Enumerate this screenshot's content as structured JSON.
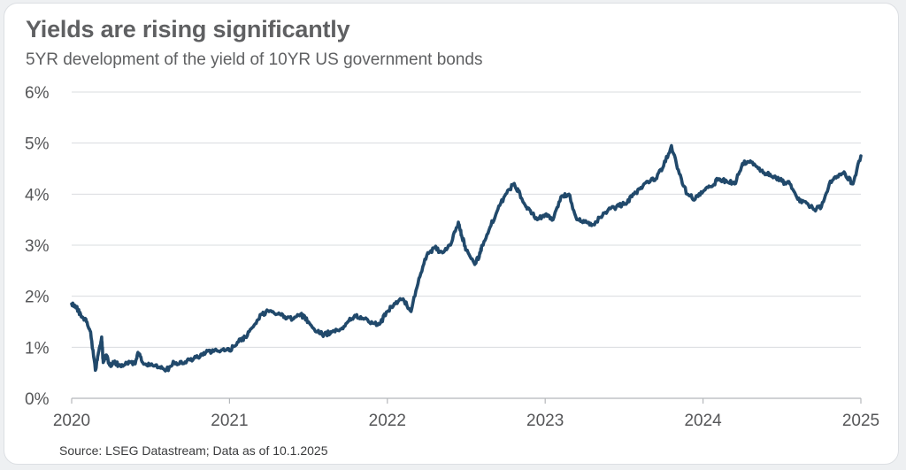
{
  "title": "Yields are rising significantly",
  "subtitle": "5YR development of the yield of 10YR US government bonds",
  "source": "Source: LSEG Datastream; Data as of 10.1.2025",
  "colors": {
    "line": "#21496b",
    "grid": "#d9dcdf",
    "text": "#5f6062"
  },
  "chart_data": {
    "type": "line",
    "title": "Yields are rising significantly",
    "subtitle": "5YR development of the yield of 10YR US government bonds",
    "xlabel": "",
    "ylabel": "",
    "xlim": [
      2020.0,
      2025.0
    ],
    "ylim": [
      0,
      6
    ],
    "x_ticks": [
      2020,
      2021,
      2022,
      2023,
      2024,
      2025
    ],
    "x_tick_labels": [
      "2020",
      "2021",
      "2022",
      "2023",
      "2024",
      "2025"
    ],
    "y_ticks": [
      0,
      1,
      2,
      3,
      4,
      5,
      6
    ],
    "y_tick_labels": [
      "0%",
      "1%",
      "2%",
      "3%",
      "4%",
      "5%",
      "6%"
    ],
    "grid": "horizontal",
    "legend": "none",
    "series": [
      {
        "x": [
          2020.0,
          2020.03,
          2020.06,
          2020.09,
          2020.12,
          2020.15,
          2020.17,
          2020.19,
          2020.2,
          2020.22,
          2020.24,
          2020.27,
          2020.3,
          2020.35,
          2020.4,
          2020.42,
          2020.45,
          2020.5,
          2020.55,
          2020.6,
          2020.65,
          2020.7,
          2020.75,
          2020.8,
          2020.85,
          2020.9,
          2020.95,
          2021.0,
          2021.05,
          2021.1,
          2021.15,
          2021.2,
          2021.25,
          2021.3,
          2021.35,
          2021.4,
          2021.45,
          2021.5,
          2021.55,
          2021.6,
          2021.65,
          2021.7,
          2021.75,
          2021.8,
          2021.85,
          2021.9,
          2021.95,
          2022.0,
          2022.05,
          2022.1,
          2022.15,
          2022.2,
          2022.25,
          2022.3,
          2022.35,
          2022.4,
          2022.45,
          2022.47,
          2022.5,
          2022.55,
          2022.58,
          2022.6,
          2022.65,
          2022.7,
          2022.75,
          2022.8,
          2022.83,
          2022.87,
          2022.9,
          2022.95,
          2023.0,
          2023.05,
          2023.1,
          2023.15,
          2023.2,
          2023.25,
          2023.3,
          2023.35,
          2023.4,
          2023.45,
          2023.5,
          2023.55,
          2023.6,
          2023.65,
          2023.7,
          2023.75,
          2023.8,
          2023.85,
          2023.9,
          2023.95,
          2024.0,
          2024.05,
          2024.1,
          2024.15,
          2024.2,
          2024.25,
          2024.3,
          2024.35,
          2024.4,
          2024.45,
          2024.5,
          2024.55,
          2024.6,
          2024.65,
          2024.7,
          2024.75,
          2024.8,
          2024.85,
          2024.9,
          2024.95,
          2025.0
        ],
        "values": [
          1.85,
          1.8,
          1.6,
          1.55,
          1.3,
          0.55,
          0.9,
          1.2,
          0.7,
          0.85,
          0.65,
          0.7,
          0.65,
          0.7,
          0.68,
          0.9,
          0.7,
          0.65,
          0.6,
          0.55,
          0.7,
          0.68,
          0.75,
          0.8,
          0.9,
          0.92,
          0.95,
          0.93,
          1.1,
          1.2,
          1.4,
          1.65,
          1.7,
          1.65,
          1.6,
          1.55,
          1.65,
          1.5,
          1.3,
          1.25,
          1.3,
          1.35,
          1.5,
          1.6,
          1.55,
          1.5,
          1.45,
          1.7,
          1.85,
          1.95,
          1.7,
          2.35,
          2.8,
          2.95,
          2.85,
          3.0,
          3.45,
          3.2,
          2.9,
          2.65,
          2.75,
          3.0,
          3.35,
          3.7,
          4.0,
          4.2,
          4.05,
          3.8,
          3.7,
          3.5,
          3.6,
          3.5,
          3.95,
          4.0,
          3.5,
          3.45,
          3.4,
          3.55,
          3.7,
          3.75,
          3.8,
          3.95,
          4.1,
          4.25,
          4.3,
          4.55,
          4.95,
          4.4,
          4.0,
          3.9,
          4.05,
          4.15,
          4.3,
          4.25,
          4.2,
          4.6,
          4.65,
          4.5,
          4.4,
          4.35,
          4.25,
          4.2,
          3.9,
          3.85,
          3.7,
          3.75,
          4.2,
          4.35,
          4.4,
          4.2,
          4.75
        ]
      }
    ]
  }
}
